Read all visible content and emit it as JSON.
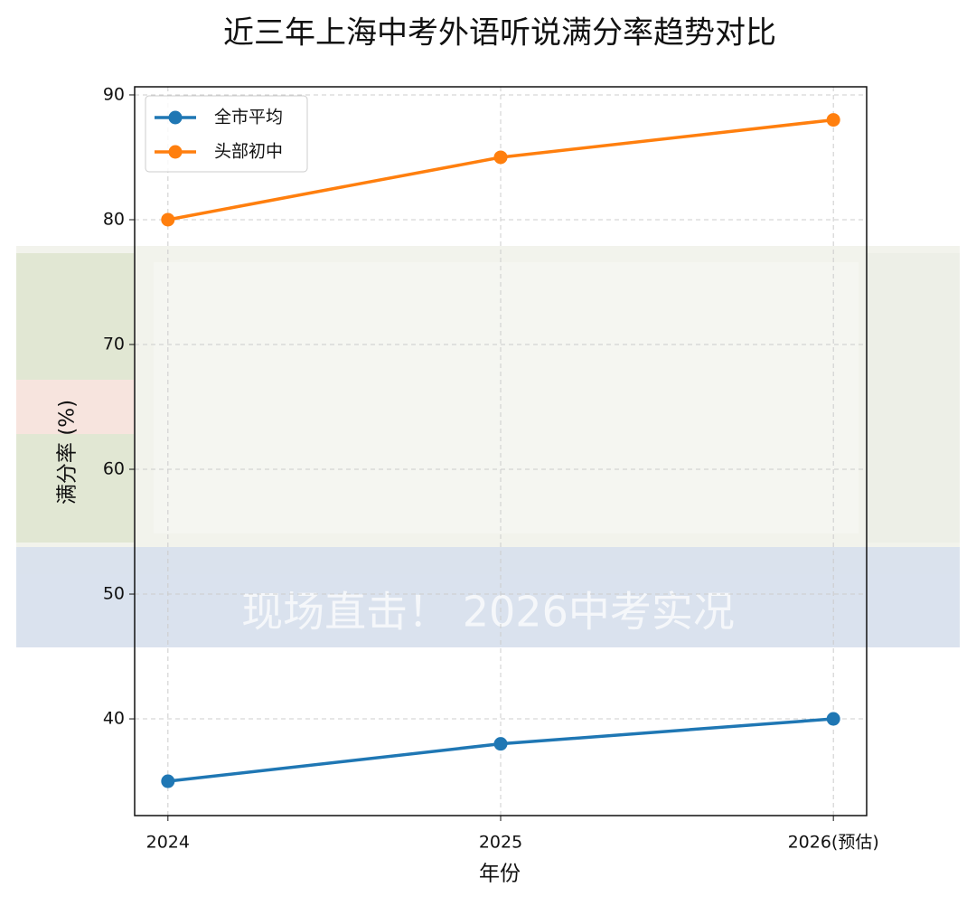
{
  "chart_data": {
    "type": "line",
    "title": "近三年上海中考外语听说满分率趋势对比",
    "xlabel": "年份",
    "ylabel": "满分率 (%)",
    "watermark": "现场直击！ 2026中考实况",
    "categories": [
      "2024",
      "2025",
      "2026(预估)"
    ],
    "series": [
      {
        "name": "全市平均",
        "color": "#1f77b4",
        "values": [
          35,
          38,
          40
        ]
      },
      {
        "name": "头部初中",
        "color": "#ff7f0e",
        "values": [
          80,
          85,
          88
        ]
      }
    ],
    "ylim": [
      32.25,
      90.65
    ],
    "yticks": [
      40,
      50,
      60,
      70,
      80,
      90
    ],
    "grid": true,
    "legend": "upper left"
  }
}
